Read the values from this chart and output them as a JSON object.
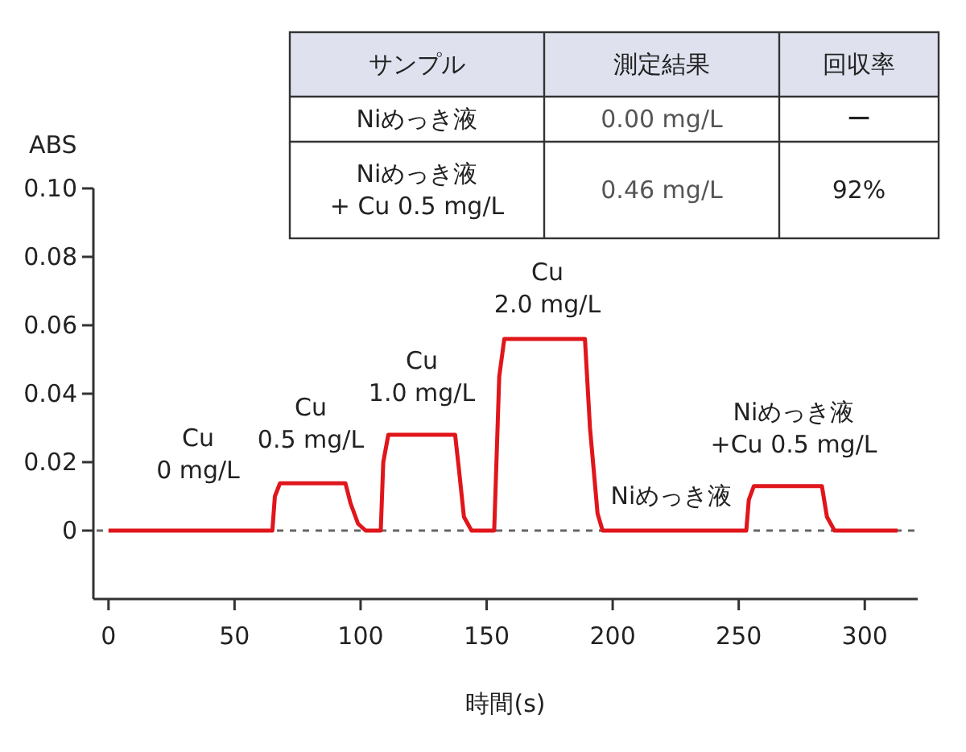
{
  "chart_data": {
    "type": "line",
    "ylabel": "ABS",
    "xlabel": "時間(s)",
    "xlim": [
      -6,
      321
    ],
    "ylim": [
      -0.02,
      0.1
    ],
    "xticks": [
      0,
      50,
      100,
      150,
      200,
      250,
      300
    ],
    "yticks": [
      {
        "value": 0,
        "label": "0"
      },
      {
        "value": 0.02,
        "label": "0.02"
      },
      {
        "value": 0.04,
        "label": "0.04"
      },
      {
        "value": 0.06,
        "label": "0.06"
      },
      {
        "value": 0.08,
        "label": "0.08"
      },
      {
        "value": 0.1,
        "label": "0.10"
      }
    ],
    "x": [
      0,
      65,
      66,
      68,
      94,
      96,
      99,
      102,
      108,
      109,
      111,
      137.5,
      139,
      141,
      144,
      153,
      155,
      157,
      189,
      191,
      194,
      196,
      253,
      254,
      256,
      283,
      285,
      288,
      313
    ],
    "series": [
      {
        "color": "#e0161b",
        "values": [
          0,
          0,
          0.01,
          0.0138,
          0.0138,
          0.008,
          0.002,
          0,
          0,
          0.02,
          0.028,
          0.028,
          0.018,
          0.004,
          0,
          0,
          0.045,
          0.056,
          0.056,
          0.03,
          0.005,
          0,
          0,
          0.009,
          0.013,
          0.013,
          0.004,
          0,
          0
        ]
      }
    ],
    "ref_lines": [
      {
        "axis": "y",
        "value": 0,
        "color": "#666666",
        "line_style": "dashed"
      }
    ],
    "marker": "none",
    "line_style": "solid",
    "annotations": [
      "Cu\n0 mg/L",
      "Cu\n0.5 mg/L",
      "Cu\n1.0 mg/L",
      "Cu\n2.0 mg/L",
      "Niめっき液",
      "Niめっき液\n+Cu 0.5 mg/L",
      "サンプル",
      "測定結果",
      "回収率",
      "Niめっき液",
      "0.00 mg/L",
      "ー",
      "Niめっき液\n+ Cu 0.5 mg/L",
      "0.46 mg/L",
      "92%"
    ]
  }
}
